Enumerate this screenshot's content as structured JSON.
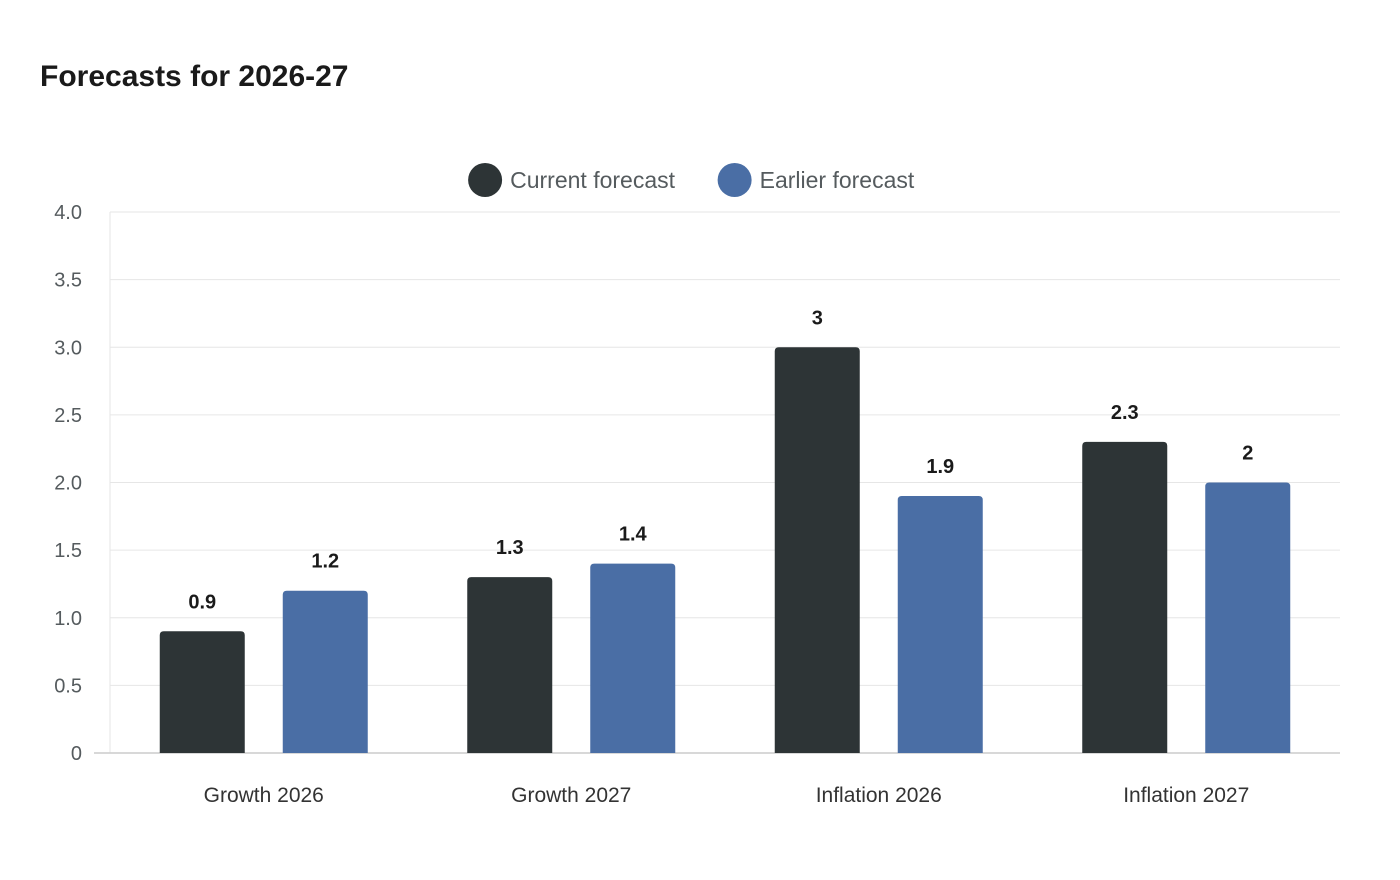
{
  "title": "Forecasts for 2026-27",
  "chart_data": {
    "type": "bar",
    "title": "Forecasts for 2026-27",
    "categories": [
      "Growth 2026",
      "Growth 2027",
      "Inflation 2026",
      "Inflation 2027"
    ],
    "series": [
      {
        "name": "Current forecast",
        "color": "#2d3436",
        "values": [
          0.9,
          1.3,
          3,
          2.3
        ],
        "labels": [
          "0.9",
          "1.3",
          "3",
          "2.3"
        ]
      },
      {
        "name": "Earlier forecast",
        "color": "#4a6ea5",
        "values": [
          1.2,
          1.4,
          1.9,
          2
        ],
        "labels": [
          "1.2",
          "1.4",
          "1.9",
          "2"
        ]
      }
    ],
    "ylim": [
      0,
      4
    ],
    "yticks": [
      "0",
      "0.5",
      "1.0",
      "1.5",
      "2.0",
      "2.5",
      "3.0",
      "3.5",
      "4.0"
    ],
    "xlabel": "",
    "ylabel": "",
    "grid": true,
    "legend_position": "top-center"
  }
}
